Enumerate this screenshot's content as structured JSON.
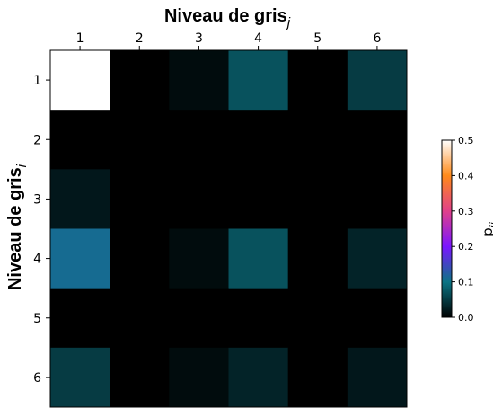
{
  "chart_data": {
    "type": "heatmap",
    "x_categories": [
      "1",
      "2",
      "3",
      "4",
      "5",
      "6"
    ],
    "y_categories": [
      "1",
      "2",
      "3",
      "4",
      "5",
      "6"
    ],
    "x_title_main": "Niveau de gris",
    "x_title_sub": "j",
    "y_title_main": "Niveau de gris",
    "y_title_sub": "i",
    "values": [
      [
        0.5,
        0.0,
        0.01,
        0.07,
        0.0,
        0.05
      ],
      [
        0.0,
        0.0,
        0.0,
        0.0,
        0.0,
        0.0
      ],
      [
        0.02,
        0.0,
        0.0,
        0.0,
        0.0,
        0.0
      ],
      [
        0.11,
        0.0,
        0.01,
        0.07,
        0.0,
        0.03
      ],
      [
        0.0,
        0.0,
        0.0,
        0.0,
        0.0,
        0.0
      ],
      [
        0.05,
        0.0,
        0.01,
        0.03,
        0.0,
        0.02
      ]
    ],
    "colorbar": {
      "label_main": "p",
      "label_sub": "ij",
      "range": [
        0.0,
        0.5
      ],
      "ticks": [
        "0.0",
        "0.1",
        "0.2",
        "0.3",
        "0.4",
        "0.5"
      ],
      "colormap": [
        "#000000",
        "#0b7585",
        "#7a16ff",
        "#e0408a",
        "#ff8a1a",
        "#ffffff"
      ]
    }
  }
}
